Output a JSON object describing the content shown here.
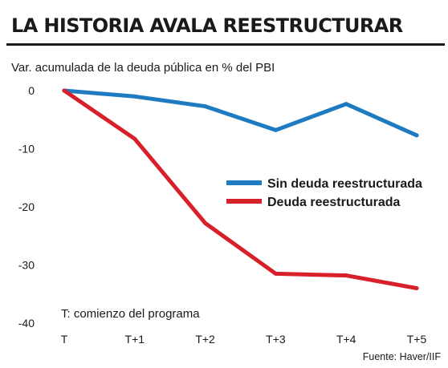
{
  "header": {
    "title": "LA HISTORIA AVALA REESTRUCTURAR"
  },
  "chart_data": {
    "type": "line",
    "title": "LA HISTORIA AVALA REESTRUCTURAR",
    "subtitle": "Var. acumulada de la deuda pública en % del PBI",
    "x": [
      "T",
      "T+1",
      "T+2",
      "T+3",
      "T+4",
      "T+5"
    ],
    "ylim": [
      -40,
      0
    ],
    "yticks": [
      "0",
      "-10",
      "-20",
      "-30",
      "-40"
    ],
    "grid": false,
    "legend_position": "right",
    "series": [
      {
        "name": "Sin deuda reestructurada",
        "color": "#1f7bc1",
        "values": [
          0,
          -1,
          -2.7,
          -6.8,
          -2.3,
          -7.7
        ]
      },
      {
        "name": "Deuda reestructurada",
        "color": "#d8202a",
        "values": [
          0,
          -8.3,
          -22.8,
          -31.5,
          -31.8,
          -34
        ]
      }
    ],
    "annotation": "T: comienzo del programa",
    "source": "Fuente: Haver/IIF"
  }
}
